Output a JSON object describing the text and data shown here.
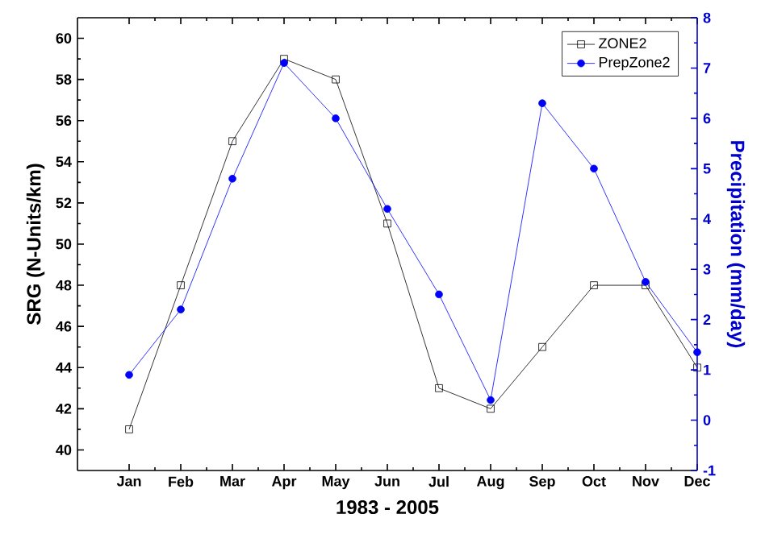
{
  "chart_data": {
    "type": "line",
    "xlabel": "1983 - 2005",
    "ylabel": "SRG (N-Units/km)",
    "y2label": "Precipitation (mm/day)",
    "categories": [
      "Jan",
      "Feb",
      "Mar",
      "Apr",
      "May",
      "Jun",
      "Jul",
      "Aug",
      "Sep",
      "Oct",
      "Nov",
      "Dec"
    ],
    "ylim": [
      39,
      61
    ],
    "yticks": [
      40,
      42,
      44,
      46,
      48,
      50,
      52,
      54,
      56,
      58,
      60
    ],
    "y2lim": [
      -1,
      8
    ],
    "y2ticks": [
      -1,
      0,
      1,
      2,
      3,
      4,
      5,
      6,
      7,
      8
    ],
    "legend": "top right",
    "grid": false,
    "series": [
      {
        "name": "ZONE2",
        "color": "#000000",
        "marker": "square",
        "values": [
          41,
          48,
          55,
          59,
          58,
          51,
          43,
          42,
          45,
          48,
          48,
          44
        ]
      },
      {
        "name": "PrepZone2",
        "color": "#0000ff",
        "marker": "circle",
        "axis": "y2",
        "values": [
          0.9,
          2.2,
          4.8,
          7.1,
          6.0,
          4.2,
          2.5,
          0.4,
          6.3,
          5.0,
          2.75,
          1.35
        ]
      }
    ]
  }
}
